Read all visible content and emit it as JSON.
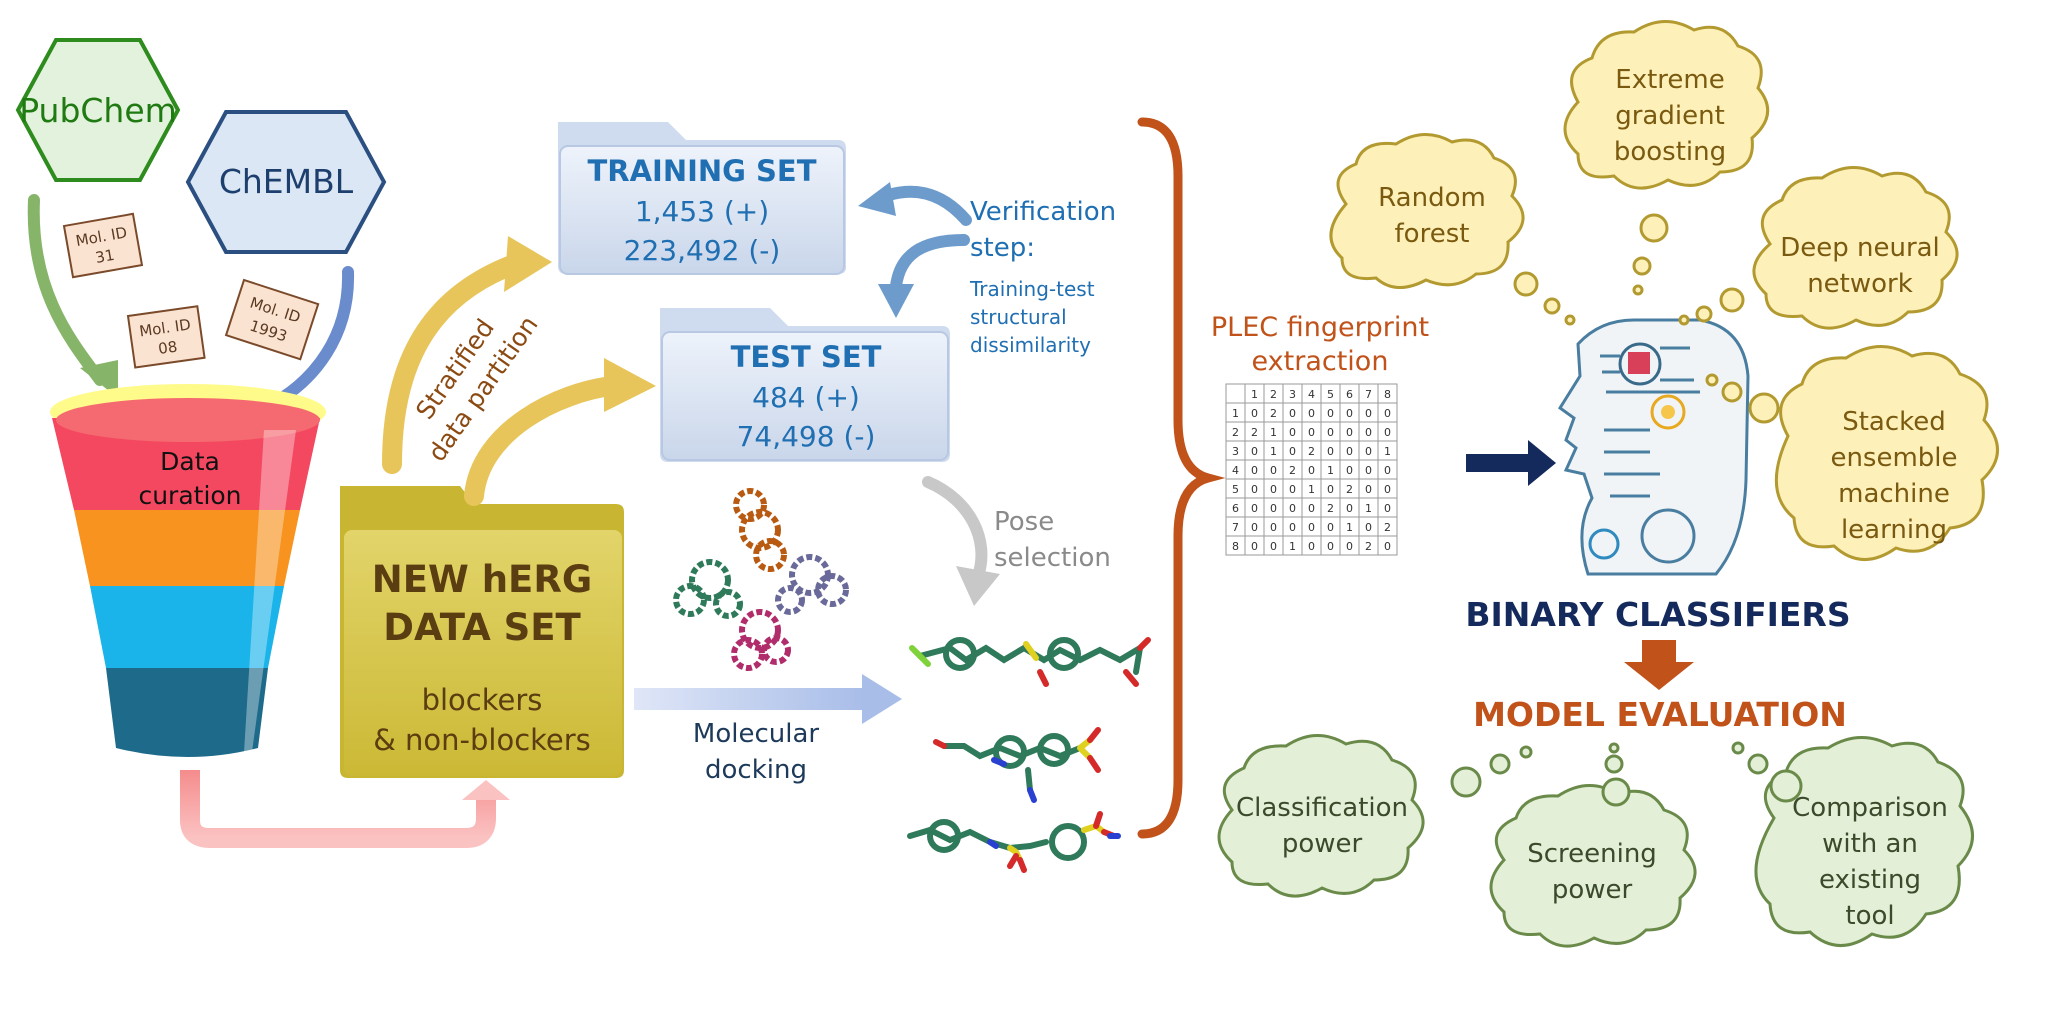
{
  "sources": {
    "pubchem": "PubChem",
    "chembl": "ChEMBL"
  },
  "mol_ids": [
    {
      "line1": "Mol. ID",
      "line2": "31"
    },
    {
      "line1": "Mol. ID",
      "line2": "08"
    },
    {
      "line1": "Mol. ID",
      "line2": "1993"
    }
  ],
  "funnel": {
    "line1": "Data",
    "line2": "curation"
  },
  "dataset": {
    "title1": "NEW hERG",
    "title2": "DATA SET",
    "sub1": "blockers",
    "sub2": "& non-blockers"
  },
  "partition": {
    "line1": "Stratified",
    "line2": "data partition"
  },
  "training_set": {
    "title": "TRAINING SET",
    "pos": "1,453 (+)",
    "neg": "223,492 (-)"
  },
  "test_set": {
    "title": "TEST SET",
    "pos": "484 (+)",
    "neg": "74,498 (-)"
  },
  "verification": {
    "title1": "Verification",
    "title2": "step:",
    "sub1": "Training-test",
    "sub2": "structural",
    "sub3": "dissimilarity"
  },
  "pose": {
    "line1": "Pose",
    "line2": "selection"
  },
  "docking": {
    "line1": "Molecular",
    "line2": "docking"
  },
  "plec": {
    "title1": "PLEC fingerprint",
    "title2": "extraction",
    "header": [
      "",
      "1",
      "2",
      "3",
      "4",
      "5",
      "6",
      "7",
      "8"
    ],
    "rows": [
      [
        "1",
        "0",
        "2",
        "0",
        "0",
        "0",
        "0",
        "0",
        "0"
      ],
      [
        "2",
        "2",
        "1",
        "0",
        "0",
        "0",
        "0",
        "0",
        "0"
      ],
      [
        "3",
        "0",
        "1",
        "0",
        "2",
        "0",
        "0",
        "0",
        "1"
      ],
      [
        "4",
        "0",
        "0",
        "2",
        "0",
        "1",
        "0",
        "0",
        "0"
      ],
      [
        "5",
        "0",
        "0",
        "0",
        "1",
        "0",
        "2",
        "0",
        "0"
      ],
      [
        "6",
        "0",
        "0",
        "0",
        "0",
        "2",
        "0",
        "1",
        "0"
      ],
      [
        "7",
        "0",
        "0",
        "0",
        "0",
        "0",
        "1",
        "0",
        "2"
      ],
      [
        "8",
        "0",
        "0",
        "1",
        "0",
        "0",
        "0",
        "2",
        "0"
      ]
    ]
  },
  "classifiers": {
    "title": "BINARY CLASSIFIERS",
    "rf1": "Random",
    "rf2": "forest",
    "xgb1": "Extreme",
    "xgb2": "gradient",
    "xgb3": "boosting",
    "dnn1": "Deep neural",
    "dnn2": "network",
    "sem1": "Stacked",
    "sem2": "ensemble",
    "sem3": "machine",
    "sem4": "learning"
  },
  "evaluation": {
    "title": "MODEL EVALUATION",
    "cp1": "Classification",
    "cp2": "power",
    "sp1": "Screening",
    "sp2": "power",
    "ct1": "Comparison",
    "ct2": "with an",
    "ct3": "existing",
    "ct4": "tool"
  },
  "colors": {
    "pubchem_fill": "#e3f2dc",
    "pubchem_stroke": "#2e8b1e",
    "pubchem_text": "#1f7a12",
    "chembl_fill": "#dbe7f5",
    "chembl_stroke": "#2a4f80",
    "chembl_text": "#1d3f6e",
    "set_text": "#1f6fb2",
    "orange": "#c0521a",
    "navy": "#14295c",
    "cloud_yellow": "#fdf0b8",
    "cloud_green": "#e3efd6"
  }
}
